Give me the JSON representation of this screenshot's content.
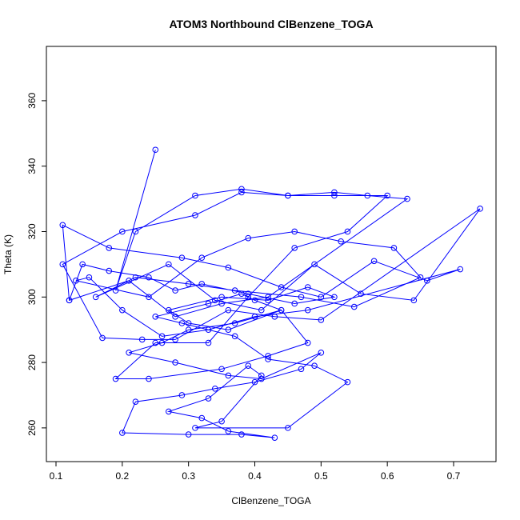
{
  "chart_data": {
    "type": "line-points",
    "title": "ATOM3 Northbound ClBenzene_TOGA",
    "x_label": "ClBenzene_TOGA",
    "y_label": "Theta (K)",
    "color": "#0000ff",
    "xlim": [
      0.0855,
      0.764
    ],
    "ylim": [
      249.7,
      376.6
    ],
    "xticks": [
      0.1,
      0.2,
      0.3,
      0.4,
      0.5,
      0.6,
      0.7
    ],
    "yticks": [
      260,
      280,
      300,
      320,
      340,
      360
    ],
    "x": [
      0.25,
      0.19,
      0.22,
      0.31,
      0.38,
      0.45,
      0.52,
      0.57,
      0.63,
      0.42,
      0.35,
      0.28,
      0.21,
      0.12,
      0.11,
      0.18,
      0.29,
      0.36,
      0.44,
      0.5,
      0.58,
      0.66,
      0.71,
      0.48,
      0.4,
      0.33,
      0.26,
      0.2,
      0.15,
      0.13,
      0.24,
      0.32,
      0.39,
      0.46,
      0.53,
      0.61,
      0.65,
      0.55,
      0.47,
      0.37,
      0.3,
      0.22,
      0.16,
      0.27,
      0.34,
      0.41,
      0.49,
      0.56,
      0.64,
      0.74,
      0.5,
      0.43,
      0.36,
      0.28,
      0.23,
      0.17,
      0.11,
      0.2,
      0.31,
      0.38,
      0.45,
      0.52,
      0.6,
      0.54,
      0.46,
      0.39,
      0.33,
      0.25,
      0.19,
      0.24,
      0.35,
      0.42,
      0.48,
      0.44,
      0.37,
      0.3,
      0.26,
      0.21,
      0.28,
      0.36,
      0.41,
      0.5,
      0.47,
      0.4,
      0.34,
      0.29,
      0.22,
      0.2,
      0.3,
      0.38,
      0.43,
      0.36,
      0.32,
      0.27,
      0.33,
      0.39,
      0.41,
      0.35,
      0.31,
      0.45,
      0.54,
      0.49,
      0.42,
      0.37,
      0.29,
      0.25,
      0.33,
      0.38,
      0.4,
      0.44,
      0.36,
      0.3,
      0.27,
      0.35,
      0.42,
      0.48,
      0.52,
      0.46,
      0.39,
      0.32,
      0.28,
      0.24,
      0.18,
      0.14,
      0.12
    ],
    "values": [
      345,
      302,
      320,
      331,
      333,
      331,
      332,
      331,
      330,
      300,
      298,
      294,
      305,
      299,
      322,
      315,
      312,
      309,
      303,
      300,
      311,
      305,
      308.5,
      296,
      294,
      290,
      288,
      296,
      306,
      305,
      300,
      312,
      318,
      320,
      317,
      315,
      306,
      297,
      300,
      302,
      304,
      306,
      300,
      310,
      299,
      296,
      310,
      301,
      299,
      327,
      293,
      294,
      296,
      287,
      287,
      287.5,
      310,
      320,
      325,
      332,
      331,
      331,
      331,
      320,
      315,
      300,
      286,
      286,
      275,
      275,
      278,
      282,
      286,
      296,
      292,
      290,
      286,
      283,
      280,
      276,
      275,
      283,
      278,
      274,
      272,
      270,
      268,
      258.5,
      258,
      258,
      257,
      259,
      263,
      265,
      269,
      279,
      276,
      262,
      260,
      260,
      274,
      279,
      281,
      288,
      292,
      294,
      298,
      301,
      299,
      296,
      290,
      292,
      296,
      300,
      299,
      303,
      300,
      298,
      301,
      304,
      302,
      306,
      308,
      310,
      299
    ]
  }
}
